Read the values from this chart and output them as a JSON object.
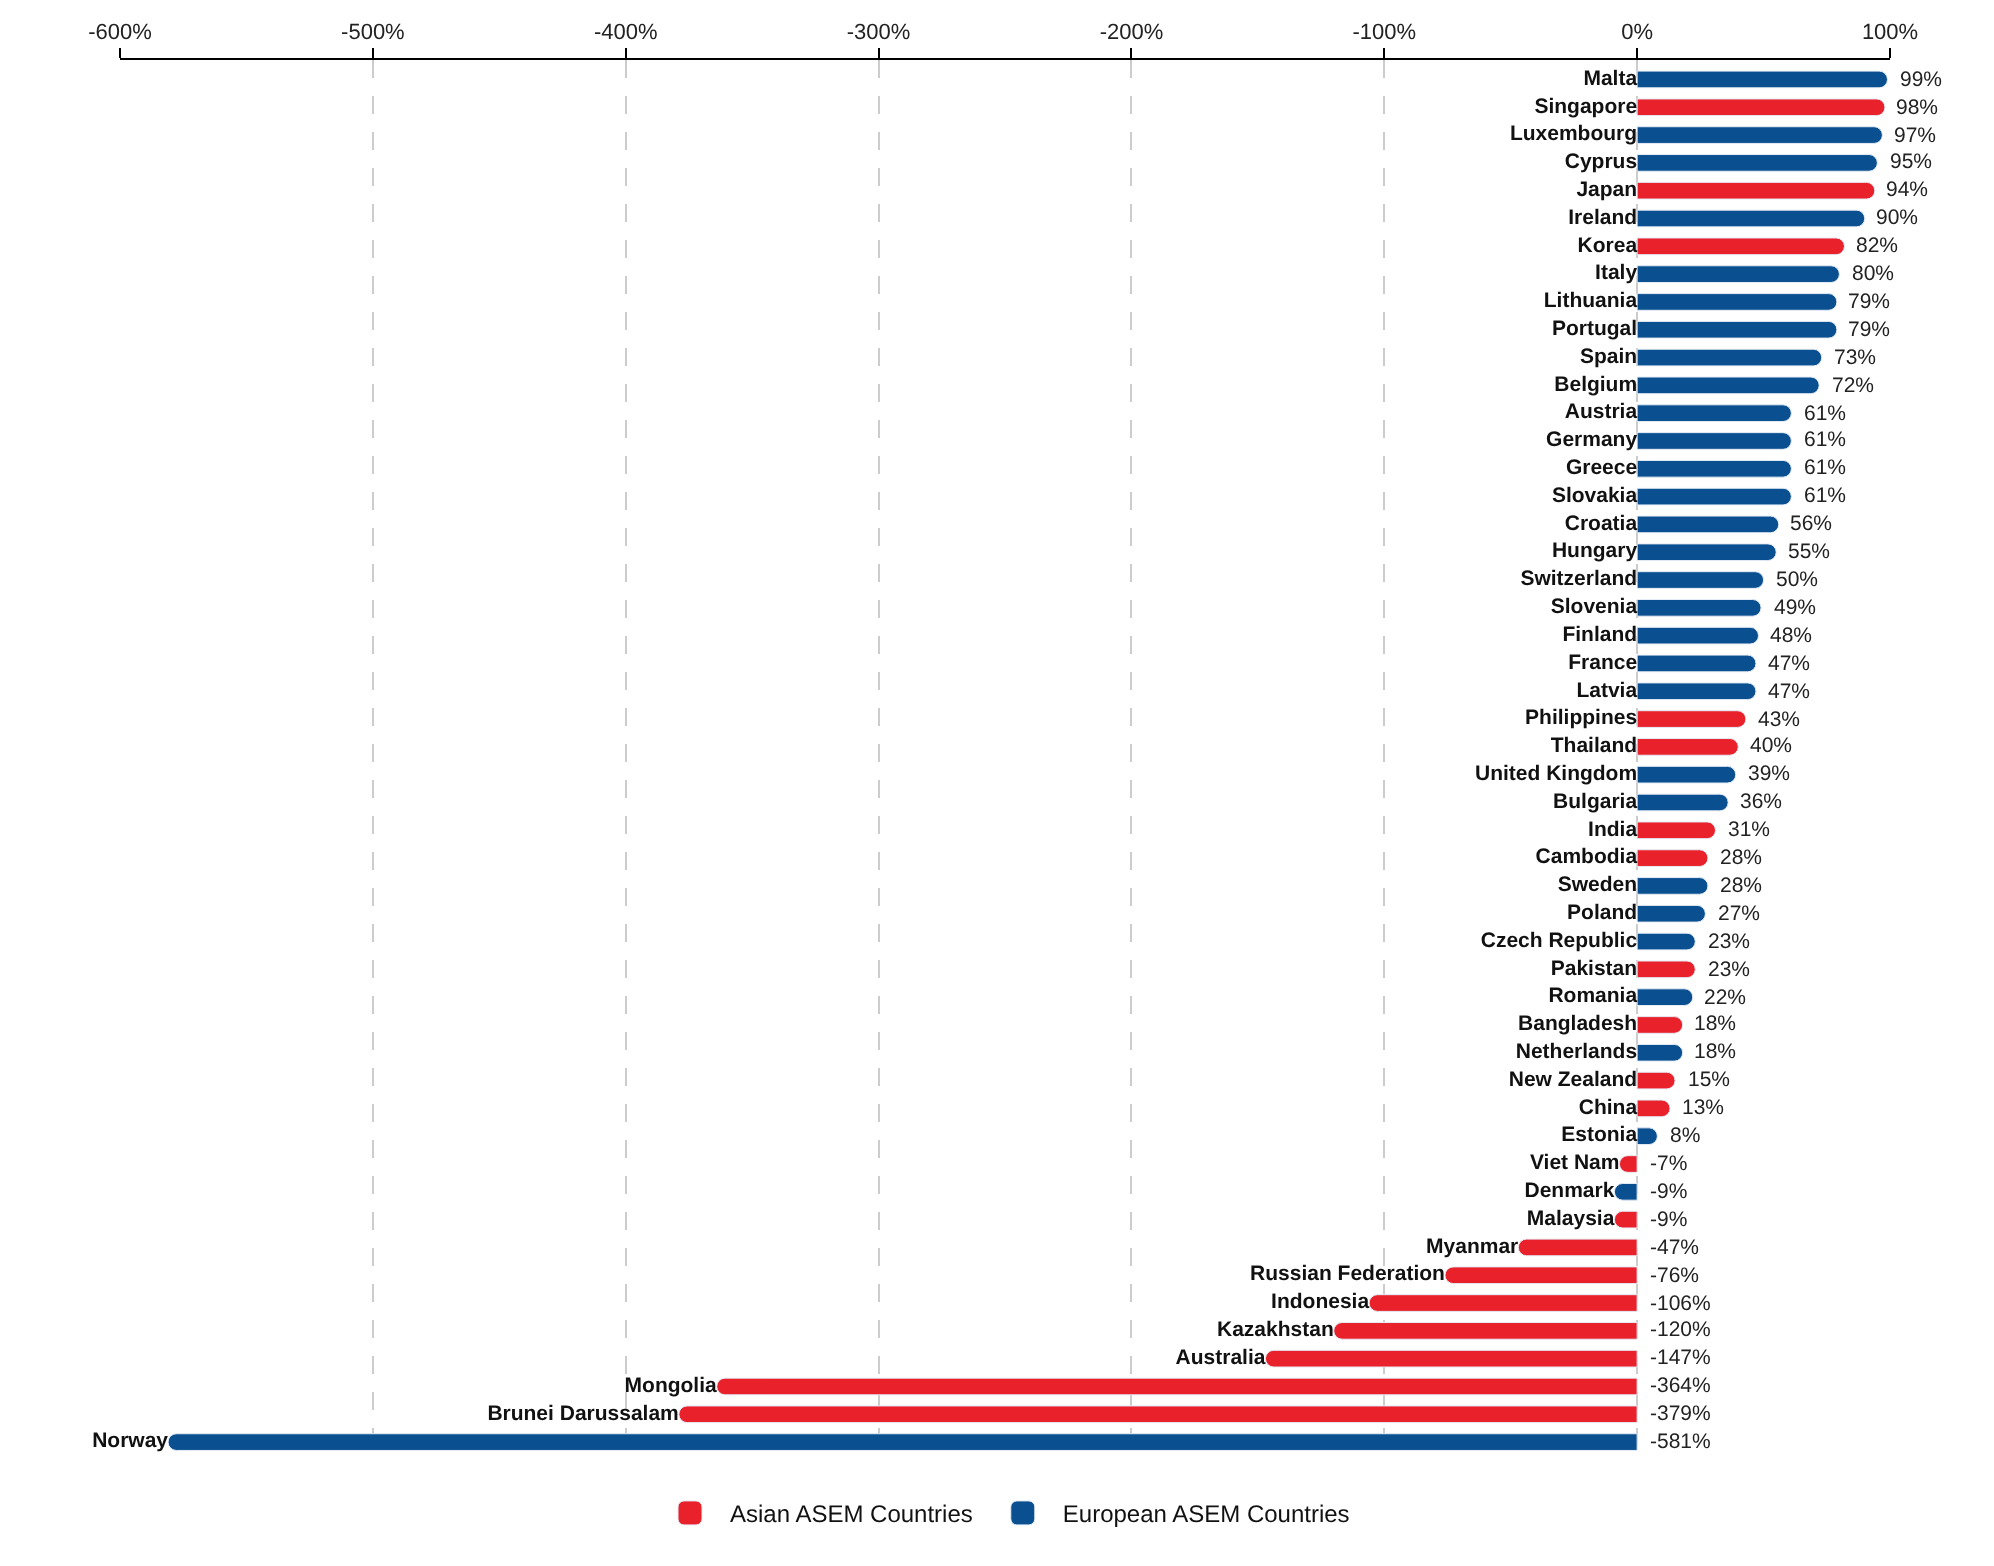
{
  "chart_data": {
    "type": "bar",
    "orientation": "horizontal",
    "legend": "bottom",
    "grid": "x",
    "tick_labels": "x",
    "xlim": [
      -600,
      100
    ],
    "xticks": [
      {
        "value": -600,
        "label": "-600%"
      },
      {
        "value": -500,
        "label": "-500%"
      },
      {
        "value": -400,
        "label": "-400%"
      },
      {
        "value": -300,
        "label": "-300%"
      },
      {
        "value": -200,
        "label": "-200%"
      },
      {
        "value": -100,
        "label": "-100%"
      },
      {
        "value": 0,
        "label": "0%"
      },
      {
        "value": 100,
        "label": "100%"
      }
    ],
    "categories": [
      "Malta",
      "Singapore",
      "Luxembourg",
      "Cyprus",
      "Japan",
      "Ireland",
      "Korea",
      "Italy",
      "Lithuania",
      "Portugal",
      "Spain",
      "Belgium",
      "Austria",
      "Germany",
      "Greece",
      "Slovakia",
      "Croatia",
      "Hungary",
      "Switzerland",
      "Slovenia",
      "Finland",
      "France",
      "Latvia",
      "Philippines",
      "Thailand",
      "United Kingdom",
      "Bulgaria",
      "India",
      "Cambodia",
      "Sweden",
      "Poland",
      "Czech Republic",
      "Pakistan",
      "Romania",
      "Bangladesh",
      "Netherlands",
      "New Zealand",
      "China",
      "Estonia",
      "Viet Nam",
      "Denmark",
      "Malaysia",
      "Myanmar",
      "Russian Federation",
      "Indonesia",
      "Kazakhstan",
      "Australia",
      "Mongolia",
      "Brunei Darussalam",
      "Norway"
    ],
    "series": [
      {
        "name": "Asian ASEM Countries",
        "color": "#e8212b",
        "values": [
          null,
          98,
          null,
          null,
          94,
          null,
          82,
          null,
          null,
          null,
          null,
          null,
          null,
          null,
          null,
          null,
          null,
          null,
          null,
          null,
          null,
          null,
          null,
          43,
          40,
          null,
          null,
          31,
          28,
          null,
          null,
          null,
          23,
          null,
          18,
          null,
          15,
          13,
          null,
          -7,
          null,
          -9,
          -47,
          -76,
          -106,
          -120,
          -147,
          -364,
          -379,
          null
        ],
        "value_labels": [
          null,
          "98%",
          null,
          null,
          "94%",
          null,
          "82%",
          null,
          null,
          null,
          null,
          null,
          null,
          null,
          null,
          null,
          null,
          null,
          null,
          null,
          null,
          null,
          null,
          "43%",
          "40%",
          null,
          null,
          "31%",
          "28%",
          null,
          null,
          null,
          "23%",
          null,
          "18%",
          null,
          "15%",
          "13%",
          null,
          "-7%",
          null,
          "-9%",
          "-47%",
          "-76%",
          "-106%",
          "-120%",
          "-147%",
          "-364%",
          "-379%",
          null
        ]
      },
      {
        "name": "European ASEM Countries",
        "color": "#0a4f8f",
        "values": [
          99,
          null,
          97,
          95,
          null,
          90,
          null,
          80,
          79,
          79,
          73,
          72,
          61,
          61,
          61,
          61,
          56,
          55,
          50,
          49,
          48,
          47,
          47,
          null,
          null,
          39,
          36,
          null,
          null,
          28,
          27,
          23,
          null,
          22,
          null,
          18,
          null,
          null,
          8,
          null,
          -9,
          null,
          null,
          null,
          null,
          null,
          null,
          null,
          null,
          -581
        ],
        "value_labels": [
          "99%",
          null,
          "97%",
          "95%",
          null,
          "90%",
          null,
          "80%",
          "79%",
          "79%",
          "73%",
          "72%",
          "61%",
          "61%",
          "61%",
          "61%",
          "56%",
          "55%",
          "50%",
          "49%",
          "48%",
          "47%",
          "47%",
          null,
          null,
          "39%",
          "36%",
          null,
          null,
          "28%",
          "27%",
          "23%",
          null,
          "22%",
          null,
          "18%",
          null,
          null,
          "8%",
          null,
          "-9%",
          null,
          null,
          null,
          null,
          null,
          null,
          null,
          null,
          "-581%"
        ]
      }
    ]
  }
}
